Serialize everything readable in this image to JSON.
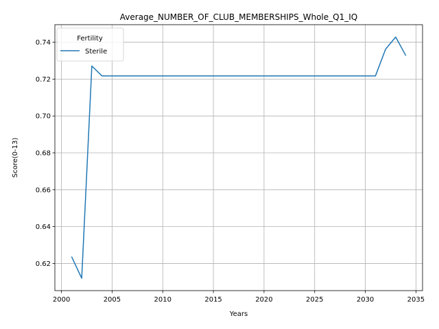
{
  "chart_data": {
    "type": "line",
    "title": "Average_NUMBER_OF_CLUB_MEMBERSHIPS_Whole_Q1_IQ",
    "xlabel": "Years",
    "ylabel": "Score(0-13)",
    "xlim": [
      1999.35,
      2035.65
    ],
    "ylim": [
      0.6053,
      0.7495
    ],
    "xticks": [
      2000,
      2005,
      2010,
      2015,
      2020,
      2025,
      2030,
      2035
    ],
    "yticks": [
      0.62,
      0.64,
      0.66,
      0.68,
      0.7,
      0.72,
      0.74
    ],
    "ytick_labels": [
      "0.62",
      "0.64",
      "0.66",
      "0.68",
      "0.70",
      "0.72",
      "0.74"
    ],
    "grid": true,
    "legend": {
      "title": "Fertility",
      "placement": "top-left"
    },
    "series": [
      {
        "name": "Sterile",
        "color": "#1f77b4",
        "x": [
          2001,
          2002,
          2003,
          2004,
          2005,
          2006,
          2007,
          2008,
          2009,
          2010,
          2011,
          2012,
          2013,
          2014,
          2015,
          2016,
          2017,
          2018,
          2019,
          2020,
          2021,
          2022,
          2023,
          2024,
          2025,
          2026,
          2027,
          2028,
          2029,
          2030,
          2031,
          2032,
          2033,
          2034
        ],
        "y": [
          0.6237,
          0.612,
          0.7271,
          0.7217,
          0.7217,
          0.7217,
          0.7217,
          0.7217,
          0.7217,
          0.7217,
          0.7217,
          0.7217,
          0.7217,
          0.7217,
          0.7217,
          0.7217,
          0.7217,
          0.7217,
          0.7217,
          0.7217,
          0.7217,
          0.7217,
          0.7217,
          0.7217,
          0.7217,
          0.7217,
          0.7217,
          0.7217,
          0.7217,
          0.7217,
          0.7217,
          0.7362,
          0.7428,
          0.7327
        ]
      }
    ]
  }
}
